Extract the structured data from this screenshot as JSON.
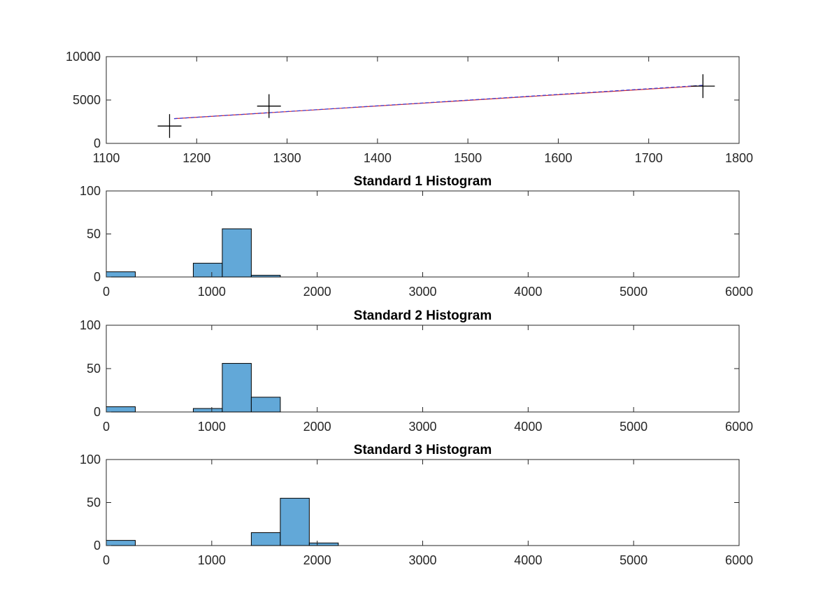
{
  "chart_data": [
    {
      "type": "scatter",
      "title": "",
      "xlabel": "",
      "ylabel": "",
      "xlim": [
        1100,
        1800
      ],
      "ylim": [
        0,
        10000
      ],
      "xticks": [
        1100,
        1200,
        1300,
        1400,
        1500,
        1600,
        1700,
        1800
      ],
      "yticks": [
        0,
        5000,
        10000
      ],
      "xtick_labels": [
        "1100",
        "1200",
        "1300",
        "1400",
        "1500",
        "1600",
        "1700",
        "1800"
      ],
      "ytick_labels": [
        "0",
        "5000",
        "10000"
      ],
      "series": [
        {
          "kind": "marker",
          "marker": "+",
          "color": "#000000",
          "x": [
            1170,
            1280,
            1760
          ],
          "y": [
            2000,
            4300,
            6600
          ]
        },
        {
          "kind": "line",
          "style": "solid",
          "color": "#d62728",
          "x": [
            1175,
            1760
          ],
          "y": [
            2850,
            6650
          ]
        },
        {
          "kind": "line",
          "style": "dashed",
          "color": "#3a3ad6",
          "x": [
            1175,
            1760
          ],
          "y": [
            2850,
            6700
          ]
        }
      ],
      "grid": false
    },
    {
      "type": "bar",
      "title": "Standard 1 Histogram",
      "xlabel": "",
      "ylabel": "",
      "xlim": [
        0,
        6000
      ],
      "ylim": [
        0,
        100
      ],
      "xticks": [
        0,
        1000,
        2000,
        3000,
        4000,
        5000,
        6000
      ],
      "yticks": [
        0,
        50,
        100
      ],
      "xtick_labels": [
        "0",
        "1000",
        "2000",
        "3000",
        "4000",
        "5000",
        "6000"
      ],
      "ytick_labels": [
        "0",
        "50",
        "100"
      ],
      "bar_color": "#62a8d8",
      "bins": [
        {
          "x0": 0,
          "x1": 275,
          "count": 6
        },
        {
          "x0": 825,
          "x1": 1100,
          "count": 16
        },
        {
          "x0": 1100,
          "x1": 1375,
          "count": 56
        },
        {
          "x0": 1375,
          "x1": 1650,
          "count": 2
        }
      ],
      "grid": false
    },
    {
      "type": "bar",
      "title": "Standard 2 Histogram",
      "xlabel": "",
      "ylabel": "",
      "xlim": [
        0,
        6000
      ],
      "ylim": [
        0,
        100
      ],
      "xticks": [
        0,
        1000,
        2000,
        3000,
        4000,
        5000,
        6000
      ],
      "yticks": [
        0,
        50,
        100
      ],
      "xtick_labels": [
        "0",
        "1000",
        "2000",
        "3000",
        "4000",
        "5000",
        "6000"
      ],
      "ytick_labels": [
        "0",
        "50",
        "100"
      ],
      "bar_color": "#62a8d8",
      "bins": [
        {
          "x0": 0,
          "x1": 275,
          "count": 6
        },
        {
          "x0": 825,
          "x1": 1100,
          "count": 4
        },
        {
          "x0": 1100,
          "x1": 1375,
          "count": 56
        },
        {
          "x0": 1375,
          "x1": 1650,
          "count": 17
        }
      ],
      "grid": false
    },
    {
      "type": "bar",
      "title": "Standard 3 Histogram",
      "xlabel": "",
      "ylabel": "",
      "xlim": [
        0,
        6000
      ],
      "ylim": [
        0,
        100
      ],
      "xticks": [
        0,
        1000,
        2000,
        3000,
        4000,
        5000,
        6000
      ],
      "yticks": [
        0,
        50,
        100
      ],
      "xtick_labels": [
        "0",
        "1000",
        "2000",
        "3000",
        "4000",
        "5000",
        "6000"
      ],
      "ytick_labels": [
        "0",
        "50",
        "100"
      ],
      "bar_color": "#62a8d8",
      "bins": [
        {
          "x0": 0,
          "x1": 275,
          "count": 6
        },
        {
          "x0": 1375,
          "x1": 1650,
          "count": 15
        },
        {
          "x0": 1650,
          "x1": 1925,
          "count": 55
        },
        {
          "x0": 1925,
          "x1": 2200,
          "count": 3
        }
      ],
      "grid": false
    }
  ]
}
